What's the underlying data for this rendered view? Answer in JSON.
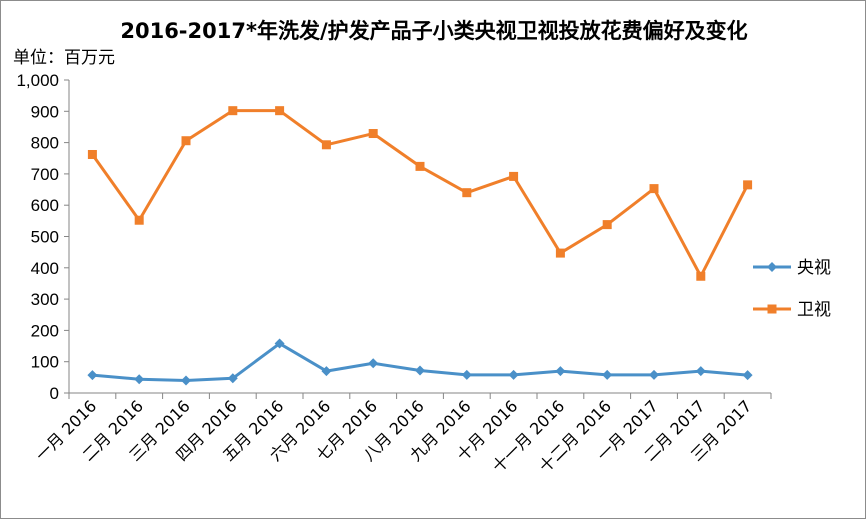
{
  "title": "2016-2017*年洗发/护发产品子小类央视卫视投放花费偏好及变化",
  "unit_label": "单位：百万元",
  "chart_data": {
    "type": "line",
    "title": "2016-2017*年洗发/护发产品子小类央视卫视投放花费偏好及变化",
    "ylabel": "单位：百万元",
    "xlabel": "",
    "ylim": [
      0,
      1000
    ],
    "ytick_values": [
      0,
      100,
      200,
      300,
      400,
      500,
      600,
      700,
      800,
      900,
      1000
    ],
    "ytick_labels": [
      "0",
      "100",
      "200",
      "300",
      "400",
      "500",
      "600",
      "700",
      "800",
      "900",
      "1,000"
    ],
    "categories": [
      "一月 2016",
      "二月 2016",
      "三月 2016",
      "四月 2016",
      "五月 2016",
      "六月 2016",
      "七月 2016",
      "八月 2016",
      "九月 2016",
      "十月 2016",
      "十一月 2016",
      "十二月 2016",
      "一月 2017",
      "二月 2017",
      "三月 2017"
    ],
    "series": [
      {
        "name": "央视",
        "color": "#4a90c8",
        "marker": "diamond",
        "values": [
          57,
          44,
          40,
          47,
          158,
          70,
          95,
          72,
          58,
          58,
          70,
          58,
          58,
          70,
          57
        ]
      },
      {
        "name": "卫视",
        "color": "#f07f2a",
        "marker": "square",
        "values": [
          762,
          552,
          806,
          902,
          902,
          793,
          829,
          724,
          640,
          692,
          447,
          538,
          653,
          373,
          665
        ]
      }
    ],
    "grid": false,
    "legend_position": "right"
  }
}
